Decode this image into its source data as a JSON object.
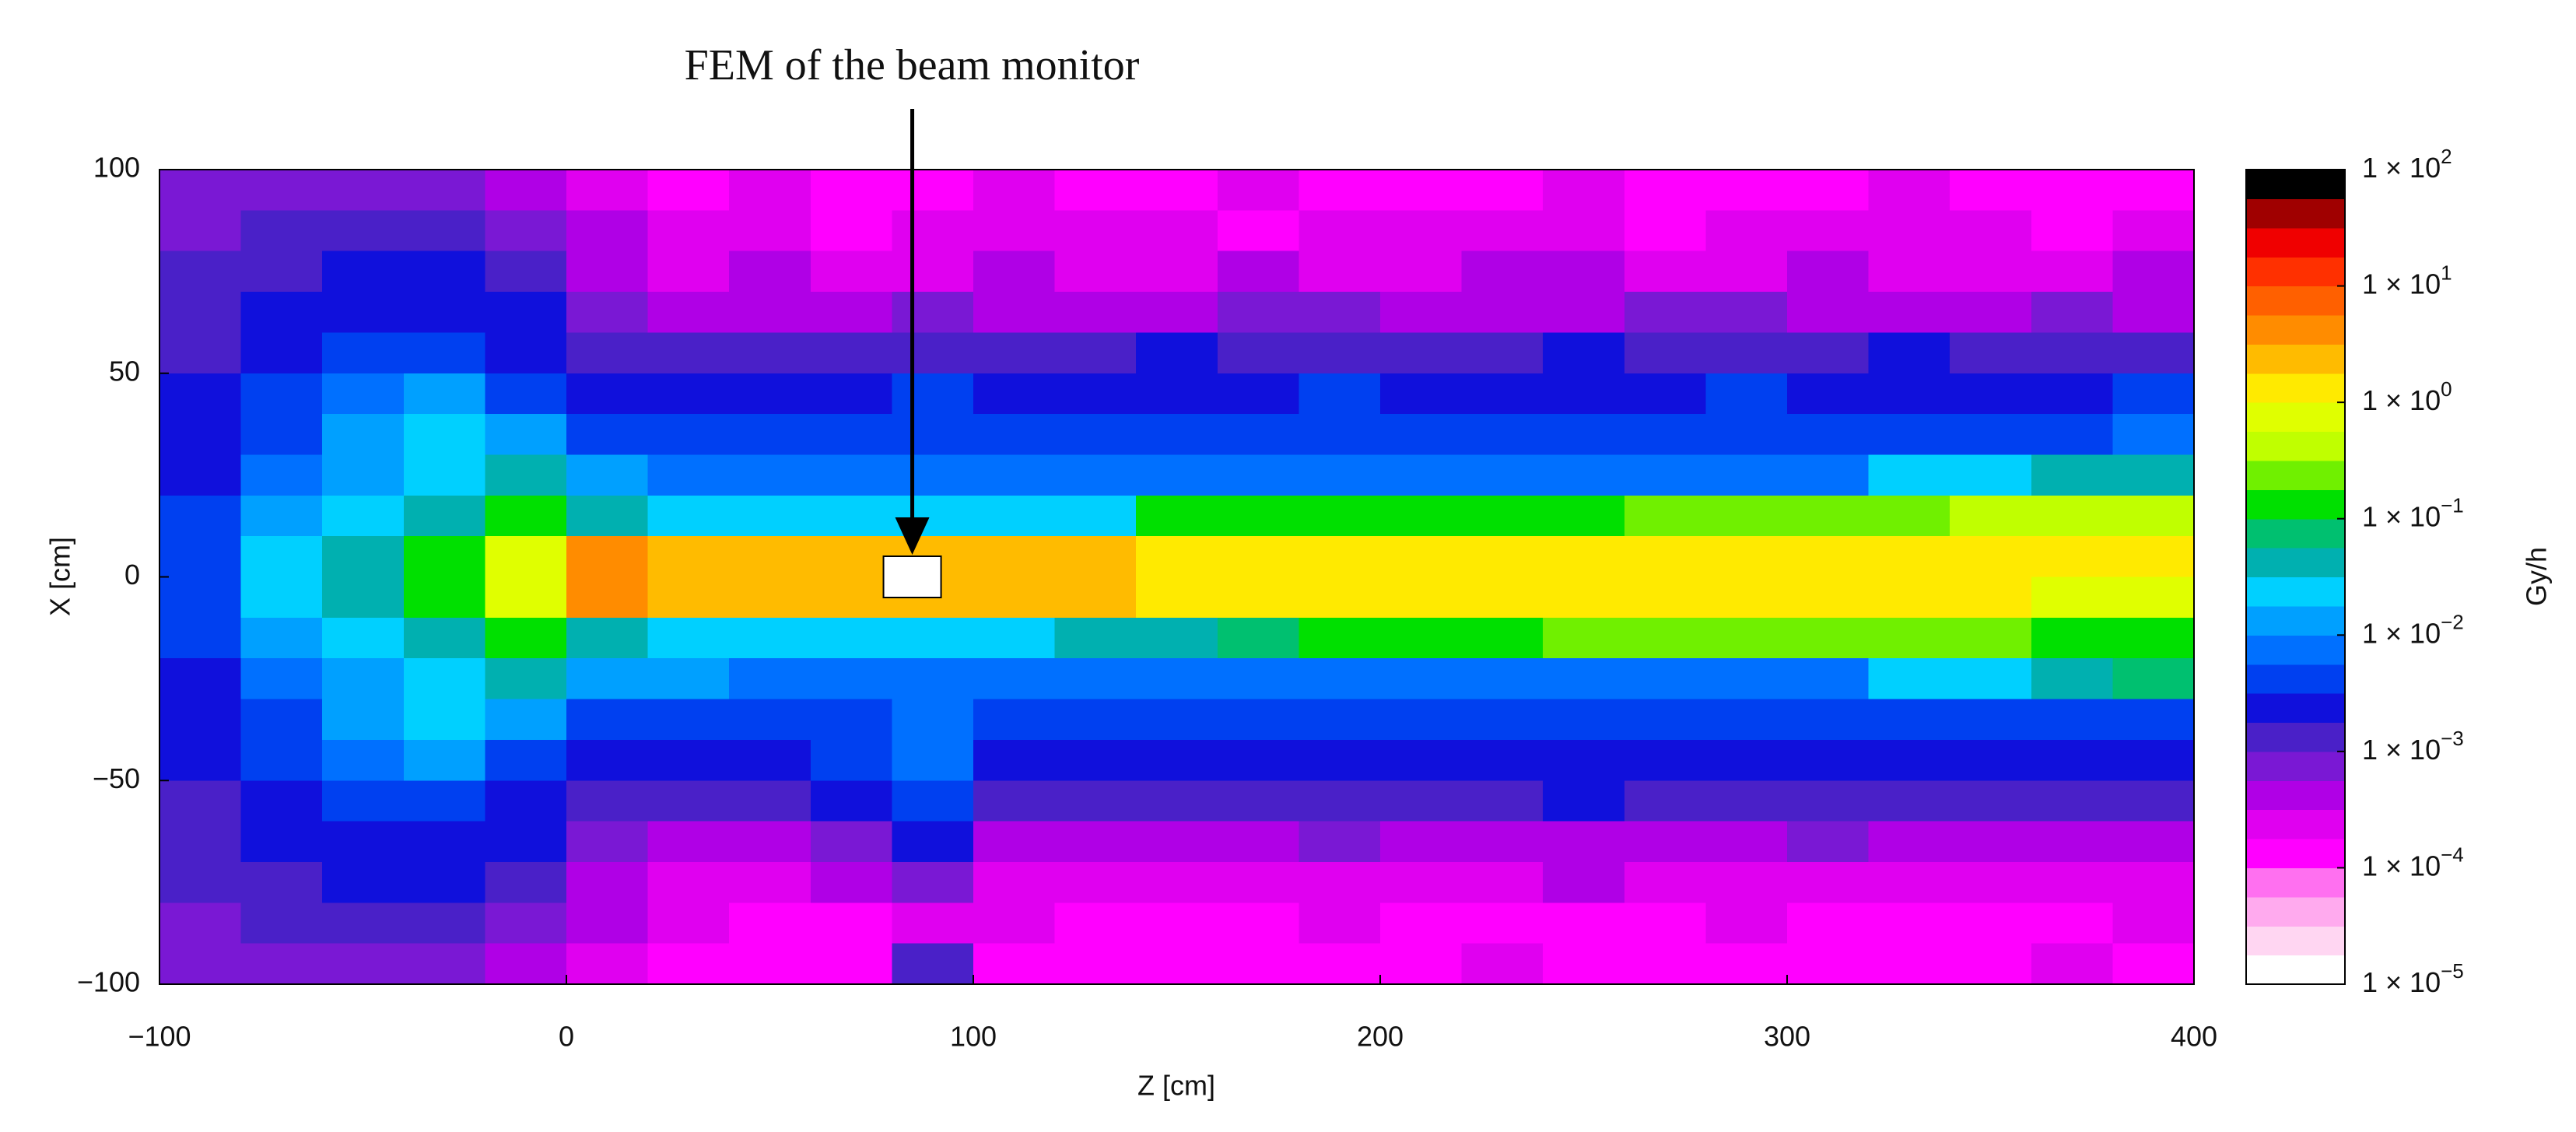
{
  "chart_data": {
    "type": "heatmap",
    "annotation": {
      "text": "FEM of the beam monitor",
      "z": 85,
      "x": 0
    },
    "xlabel": "Z [cm]",
    "ylabel": "X [cm]",
    "colorbar_label": "Gy/h",
    "xlim": [
      -100,
      400
    ],
    "xticks": [
      {
        "value": -100,
        "label": "−100"
      },
      0,
      100,
      200,
      300,
      400
    ],
    "ylim": [
      -100,
      100
    ],
    "yticks": [
      {
        "value": -100,
        "label": "−100"
      },
      {
        "value": -50,
        "label": "−50"
      },
      0,
      50,
      100
    ],
    "xbins": [
      -100,
      -80,
      -60,
      -40,
      -20,
      0,
      20,
      40,
      60,
      80,
      100,
      120,
      140,
      160,
      180,
      200,
      220,
      240,
      260,
      280,
      300,
      320,
      340,
      360,
      380,
      400
    ],
    "ybins": [
      100,
      90,
      80,
      70,
      60,
      50,
      40,
      30,
      20,
      10,
      0,
      -10,
      -20,
      -30,
      -40,
      -50,
      -60,
      -70,
      -80,
      -90,
      -100
    ],
    "log_scale": true,
    "clim": [
      1e-05,
      100
    ],
    "cticks": [
      {
        "value": 1e-05,
        "label": "1 × 10",
        "exponent": "−5"
      },
      {
        "value": 0.0001,
        "label": "1 × 10",
        "exponent": "−4"
      },
      {
        "value": 0.001,
        "label": "1 × 10",
        "exponent": "−3"
      },
      {
        "value": 0.01,
        "label": "1 × 10",
        "exponent": "−2"
      },
      {
        "value": 0.1,
        "label": "1 × 10",
        "exponent": "−1"
      },
      {
        "value": 1,
        "label": "1 × 10",
        "exponent": "0"
      },
      {
        "value": 10,
        "label": "1 × 10",
        "exponent": "1"
      },
      {
        "value": 100,
        "label": "1 × 10",
        "exponent": "2"
      }
    ],
    "colorscale": [
      "#ffffff",
      "#ffd6f2",
      "#ffaaee",
      "#ff70f0",
      "#ff00ff",
      "#e000f0",
      "#b000e6",
      "#7a18d4",
      "#4a20c8",
      "#1010dc",
      "#0040f0",
      "#0070ff",
      "#00a0ff",
      "#00d0ff",
      "#00b0b0",
      "#00c070",
      "#00e000",
      "#70f000",
      "#c0ff00",
      "#e0ff00",
      "#ffea00",
      "#ffbb00",
      "#ff8c00",
      "#ff6000",
      "#ff3000",
      "#f00000",
      "#a00000",
      "#000000"
    ],
    "values": [
      [
        0.0007,
        0.0007,
        0.0007,
        0.0007,
        0.0004,
        0.00024,
        0.00013,
        0.00024,
        0.00013,
        0.00013,
        0.00024,
        0.00013,
        0.00013,
        0.00024,
        0.00013,
        0.00013,
        0.00013,
        0.00024,
        0.00013,
        0.00013,
        0.00013,
        0.00024,
        0.00013,
        0.00013,
        0.00013
      ],
      [
        0.0007,
        0.0013,
        0.0013,
        0.0013,
        0.0007,
        0.0004,
        0.00024,
        0.00024,
        0.00013,
        0.00024,
        0.00024,
        0.00024,
        0.00024,
        0.00013,
        0.00024,
        0.00024,
        0.00024,
        0.00024,
        0.00013,
        0.00024,
        0.00024,
        0.00024,
        0.00024,
        0.00013,
        0.00024
      ],
      [
        0.0013,
        0.0013,
        0.0024,
        0.0024,
        0.0013,
        0.0004,
        0.00024,
        0.0004,
        0.00024,
        0.00024,
        0.0004,
        0.00024,
        0.00024,
        0.0004,
        0.00024,
        0.00024,
        0.0004,
        0.0004,
        0.00024,
        0.00024,
        0.0004,
        0.00024,
        0.00024,
        0.00024,
        0.0004
      ],
      [
        0.0013,
        0.0024,
        0.0024,
        0.0024,
        0.0024,
        0.0007,
        0.0004,
        0.0004,
        0.0004,
        0.0007,
        0.0004,
        0.0004,
        0.0004,
        0.0007,
        0.0007,
        0.0004,
        0.0004,
        0.0004,
        0.0007,
        0.0007,
        0.0004,
        0.0004,
        0.0004,
        0.0007,
        0.0004
      ],
      [
        0.0013,
        0.0024,
        0.004,
        0.004,
        0.0024,
        0.0013,
        0.0013,
        0.0013,
        0.0013,
        0.0013,
        0.0013,
        0.0013,
        0.0024,
        0.0013,
        0.0013,
        0.0013,
        0.0013,
        0.0024,
        0.0013,
        0.0013,
        0.0013,
        0.0024,
        0.0013,
        0.0013,
        0.0013
      ],
      [
        0.0024,
        0.004,
        0.007,
        0.013,
        0.004,
        0.0024,
        0.0024,
        0.0024,
        0.0024,
        0.004,
        0.0024,
        0.0024,
        0.0024,
        0.0024,
        0.004,
        0.0024,
        0.0024,
        0.0024,
        0.0024,
        0.004,
        0.0024,
        0.0024,
        0.0024,
        0.0024,
        0.004
      ],
      [
        0.0024,
        0.004,
        0.013,
        0.024,
        0.013,
        0.004,
        0.004,
        0.004,
        0.004,
        0.004,
        0.004,
        0.004,
        0.004,
        0.004,
        0.004,
        0.004,
        0.004,
        0.004,
        0.004,
        0.004,
        0.004,
        0.004,
        0.004,
        0.004,
        0.007
      ],
      [
        0.0024,
        0.007,
        0.013,
        0.024,
        0.04,
        0.013,
        0.007,
        0.007,
        0.007,
        0.007,
        0.007,
        0.007,
        0.007,
        0.007,
        0.007,
        0.007,
        0.007,
        0.007,
        0.007,
        0.007,
        0.007,
        0.024,
        0.024,
        0.04,
        0.04
      ],
      [
        0.004,
        0.013,
        0.024,
        0.04,
        0.13,
        0.04,
        0.024,
        0.024,
        0.024,
        0.024,
        0.024,
        0.024,
        0.13,
        0.13,
        0.13,
        0.13,
        0.13,
        0.13,
        0.24,
        0.24,
        0.24,
        0.24,
        0.4,
        0.4,
        0.4
      ],
      [
        0.004,
        0.024,
        0.04,
        0.13,
        0.7,
        4,
        2.4,
        2.4,
        2.4,
        2.4,
        2.4,
        2.4,
        1.3,
        1.3,
        1.3,
        1.3,
        1.3,
        1.3,
        1.3,
        1.3,
        1.3,
        1.3,
        1.3,
        1.3,
        1.3
      ],
      [
        0.004,
        0.024,
        0.04,
        0.13,
        0.7,
        4,
        2.4,
        2.4,
        2.4,
        2.4,
        2.4,
        2.4,
        1.3,
        1.3,
        1.3,
        1.3,
        1.3,
        1.3,
        1.3,
        1.3,
        1.3,
        1.3,
        1.3,
        0.7,
        0.7
      ],
      [
        0.004,
        0.013,
        0.024,
        0.04,
        0.13,
        0.04,
        0.024,
        0.024,
        0.024,
        0.024,
        0.024,
        0.04,
        0.04,
        0.07,
        0.13,
        0.13,
        0.13,
        0.24,
        0.24,
        0.24,
        0.24,
        0.24,
        0.24,
        0.13,
        0.13
      ],
      [
        0.0024,
        0.007,
        0.013,
        0.024,
        0.04,
        0.013,
        0.013,
        0.007,
        0.007,
        0.007,
        0.007,
        0.007,
        0.007,
        0.007,
        0.007,
        0.007,
        0.007,
        0.007,
        0.007,
        0.007,
        0.007,
        0.024,
        0.024,
        0.04,
        0.07
      ],
      [
        0.0024,
        0.004,
        0.013,
        0.024,
        0.013,
        0.004,
        0.004,
        0.004,
        0.004,
        0.007,
        0.004,
        0.004,
        0.004,
        0.004,
        0.004,
        0.004,
        0.004,
        0.004,
        0.004,
        0.004,
        0.004,
        0.004,
        0.004,
        0.004,
        0.004
      ],
      [
        0.0024,
        0.004,
        0.007,
        0.013,
        0.004,
        0.0024,
        0.0024,
        0.0024,
        0.004,
        0.007,
        0.0024,
        0.0024,
        0.0024,
        0.0024,
        0.0024,
        0.0024,
        0.0024,
        0.0024,
        0.0024,
        0.0024,
        0.0024,
        0.0024,
        0.0024,
        0.0024,
        0.0024
      ],
      [
        0.0013,
        0.0024,
        0.004,
        0.004,
        0.0024,
        0.0013,
        0.0013,
        0.0013,
        0.0024,
        0.004,
        0.0013,
        0.0013,
        0.0013,
        0.0013,
        0.0013,
        0.0013,
        0.0013,
        0.0024,
        0.0013,
        0.0013,
        0.0013,
        0.0013,
        0.0013,
        0.0013,
        0.0013
      ],
      [
        0.0013,
        0.0024,
        0.0024,
        0.0024,
        0.0024,
        0.0007,
        0.0004,
        0.0004,
        0.0007,
        0.0024,
        0.0004,
        0.0004,
        0.0004,
        0.0004,
        0.0007,
        0.0004,
        0.0004,
        0.0004,
        0.0004,
        0.0004,
        0.0007,
        0.0004,
        0.0004,
        0.0004,
        0.0004
      ],
      [
        0.0013,
        0.0013,
        0.0024,
        0.0024,
        0.0013,
        0.0004,
        0.00024,
        0.00024,
        0.0004,
        0.0007,
        0.00024,
        0.00024,
        0.00024,
        0.00024,
        0.00024,
        0.00024,
        0.00024,
        0.0004,
        0.00024,
        0.00024,
        0.00024,
        0.00024,
        0.00024,
        0.00024,
        0.00024
      ],
      [
        0.0007,
        0.0013,
        0.0013,
        0.0013,
        0.0007,
        0.0004,
        0.00024,
        0.00013,
        0.00013,
        0.00024,
        0.00024,
        0.00013,
        0.00013,
        0.00013,
        0.00024,
        0.00013,
        0.00013,
        0.00013,
        0.00013,
        0.00024,
        0.00013,
        0.00013,
        0.00013,
        0.00013,
        0.00024
      ],
      [
        0.0007,
        0.0007,
        0.0007,
        0.0007,
        0.0004,
        0.00024,
        0.00013,
        0.00013,
        0.00013,
        0.0013,
        0.00013,
        0.00013,
        0.00013,
        0.00013,
        0.00013,
        0.00013,
        0.00024,
        0.00013,
        0.00013,
        0.00013,
        0.00013,
        0.00013,
        0.00013,
        0.00024,
        0.00013
      ]
    ]
  }
}
